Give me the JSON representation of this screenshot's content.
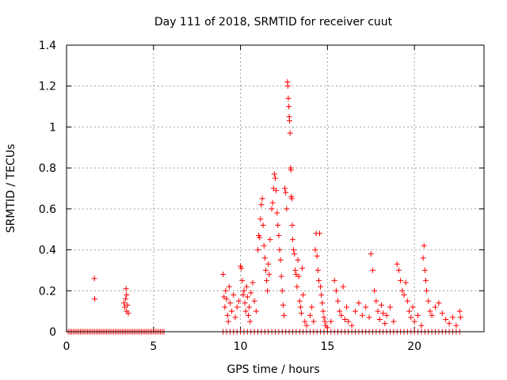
{
  "colors": {
    "marker": "#ff0000",
    "axes": "#000000",
    "grid": "#a0a0a0",
    "background": "#ffffff"
  },
  "chart_data": {
    "type": "scatter",
    "title": "Day 111 of 2018, SRMTID for receiver cuut",
    "xlabel": "GPS time / hours",
    "ylabel": "SRMTID / TECUs",
    "xlim": [
      0,
      24
    ],
    "ylim": [
      0,
      1.4
    ],
    "grid": true,
    "marker": "+",
    "x_ticks": [
      0,
      5,
      10,
      15,
      20
    ],
    "y_ticks": [
      0,
      0.2,
      0.4,
      0.6,
      0.8,
      1,
      1.2,
      1.4
    ],
    "x_tick_labels": [
      "0",
      "5",
      "10",
      "15",
      "20"
    ],
    "y_tick_labels": [
      "0",
      "0.2",
      "0.4",
      "0.6",
      "0.8",
      "1",
      "1.2",
      "1.4"
    ],
    "series": [
      {
        "name": "SRMTID",
        "points": [
          [
            0.1,
            0
          ],
          [
            0.2,
            0
          ],
          [
            0.3,
            0
          ],
          [
            0.4,
            0
          ],
          [
            0.5,
            0
          ],
          [
            0.6,
            0
          ],
          [
            0.7,
            0
          ],
          [
            0.8,
            0
          ],
          [
            0.9,
            0
          ],
          [
            1.0,
            0
          ],
          [
            1.1,
            0
          ],
          [
            1.2,
            0
          ],
          [
            1.3,
            0
          ],
          [
            1.4,
            0
          ],
          [
            1.5,
            0
          ],
          [
            1.6,
            0
          ],
          [
            1.7,
            0
          ],
          [
            1.8,
            0
          ],
          [
            1.9,
            0
          ],
          [
            2.0,
            0
          ],
          [
            2.1,
            0
          ],
          [
            2.2,
            0
          ],
          [
            2.3,
            0
          ],
          [
            2.4,
            0
          ],
          [
            2.5,
            0
          ],
          [
            2.6,
            0
          ],
          [
            2.7,
            0
          ],
          [
            2.8,
            0
          ],
          [
            2.9,
            0
          ],
          [
            3.0,
            0
          ],
          [
            3.1,
            0
          ],
          [
            3.2,
            0
          ],
          [
            3.3,
            0
          ],
          [
            3.4,
            0
          ],
          [
            3.5,
            0
          ],
          [
            3.6,
            0
          ],
          [
            3.7,
            0
          ],
          [
            3.8,
            0
          ],
          [
            3.9,
            0
          ],
          [
            4.0,
            0
          ],
          [
            4.1,
            0
          ],
          [
            4.2,
            0
          ],
          [
            4.3,
            0
          ],
          [
            4.4,
            0
          ],
          [
            4.5,
            0
          ],
          [
            4.6,
            0
          ],
          [
            4.7,
            0
          ],
          [
            4.8,
            0
          ],
          [
            4.9,
            0
          ],
          [
            5.0,
            0
          ],
          [
            5.1,
            0
          ],
          [
            5.2,
            0
          ],
          [
            5.3,
            0
          ],
          [
            5.4,
            0
          ],
          [
            5.5,
            0
          ],
          [
            5.6,
            0
          ],
          [
            1.6,
            0.26
          ],
          [
            1.62,
            0.16
          ],
          [
            3.3,
            0.14
          ],
          [
            3.35,
            0.12
          ],
          [
            3.4,
            0.16
          ],
          [
            3.42,
            0.21
          ],
          [
            3.45,
            0.1
          ],
          [
            3.5,
            0.13
          ],
          [
            3.55,
            0.09
          ],
          [
            3.45,
            0.18
          ],
          [
            9.0,
            0
          ],
          [
            9.2,
            0
          ],
          [
            9.4,
            0
          ],
          [
            9.6,
            0
          ],
          [
            9.8,
            0
          ],
          [
            10.0,
            0
          ],
          [
            10.2,
            0
          ],
          [
            10.4,
            0
          ],
          [
            10.6,
            0
          ],
          [
            10.8,
            0
          ],
          [
            11.0,
            0
          ],
          [
            11.2,
            0
          ],
          [
            11.4,
            0
          ],
          [
            11.6,
            0
          ],
          [
            11.8,
            0
          ],
          [
            12.0,
            0
          ],
          [
            12.2,
            0
          ],
          [
            12.4,
            0
          ],
          [
            12.6,
            0
          ],
          [
            12.8,
            0
          ],
          [
            13.0,
            0
          ],
          [
            13.2,
            0
          ],
          [
            13.4,
            0
          ],
          [
            13.6,
            0
          ],
          [
            13.8,
            0
          ],
          [
            14.0,
            0
          ],
          [
            14.2,
            0
          ],
          [
            14.4,
            0
          ],
          [
            14.6,
            0
          ],
          [
            14.8,
            0
          ],
          [
            15.0,
            0
          ],
          [
            15.2,
            0
          ],
          [
            15.4,
            0
          ],
          [
            15.6,
            0
          ],
          [
            15.8,
            0
          ],
          [
            16.0,
            0
          ],
          [
            16.2,
            0
          ],
          [
            16.4,
            0
          ],
          [
            16.6,
            0
          ],
          [
            16.8,
            0
          ],
          [
            17.0,
            0
          ],
          [
            17.2,
            0
          ],
          [
            17.4,
            0
          ],
          [
            17.6,
            0
          ],
          [
            17.8,
            0
          ],
          [
            18.0,
            0
          ],
          [
            18.2,
            0
          ],
          [
            18.4,
            0
          ],
          [
            18.6,
            0
          ],
          [
            18.8,
            0
          ],
          [
            19.0,
            0
          ],
          [
            19.2,
            0
          ],
          [
            19.4,
            0
          ],
          [
            19.6,
            0
          ],
          [
            19.8,
            0
          ],
          [
            20.0,
            0
          ],
          [
            20.2,
            0
          ],
          [
            20.4,
            0
          ],
          [
            20.6,
            0
          ],
          [
            20.8,
            0
          ],
          [
            21.0,
            0
          ],
          [
            21.2,
            0
          ],
          [
            21.4,
            0
          ],
          [
            21.6,
            0
          ],
          [
            21.8,
            0
          ],
          [
            22.0,
            0
          ],
          [
            22.2,
            0
          ],
          [
            22.4,
            0
          ],
          [
            22.6,
            0
          ],
          [
            9.0,
            0.28
          ],
          [
            9.05,
            0.17
          ],
          [
            9.1,
            0.12
          ],
          [
            9.15,
            0.2
          ],
          [
            9.2,
            0.16
          ],
          [
            9.25,
            0.08
          ],
          [
            9.3,
            0.05
          ],
          [
            9.35,
            0.22
          ],
          [
            9.4,
            0.14
          ],
          [
            9.5,
            0.1
          ],
          [
            9.6,
            0.18
          ],
          [
            9.7,
            0.07
          ],
          [
            9.8,
            0.12
          ],
          [
            9.9,
            0.15
          ],
          [
            10.0,
            0.32
          ],
          [
            10.05,
            0.31
          ],
          [
            10.1,
            0.25
          ],
          [
            10.15,
            0.18
          ],
          [
            10.2,
            0.2
          ],
          [
            10.25,
            0.14
          ],
          [
            10.3,
            0.1
          ],
          [
            10.35,
            0.22
          ],
          [
            10.4,
            0.17
          ],
          [
            10.45,
            0.08
          ],
          [
            10.5,
            0.12
          ],
          [
            10.55,
            0.05
          ],
          [
            10.6,
            0.19
          ],
          [
            10.7,
            0.24
          ],
          [
            10.8,
            0.15
          ],
          [
            10.9,
            0.1
          ],
          [
            11.0,
            0.4
          ],
          [
            11.05,
            0.47
          ],
          [
            11.1,
            0.46
          ],
          [
            11.15,
            0.55
          ],
          [
            11.2,
            0.62
          ],
          [
            11.25,
            0.65
          ],
          [
            11.3,
            0.52
          ],
          [
            11.35,
            0.42
          ],
          [
            11.4,
            0.36
          ],
          [
            11.45,
            0.3
          ],
          [
            11.5,
            0.25
          ],
          [
            11.55,
            0.2
          ],
          [
            11.6,
            0.33
          ],
          [
            11.65,
            0.28
          ],
          [
            11.7,
            0.45
          ],
          [
            11.8,
            0.6
          ],
          [
            11.85,
            0.63
          ],
          [
            11.9,
            0.7
          ],
          [
            11.95,
            0.77
          ],
          [
            12.0,
            0.75
          ],
          [
            12.05,
            0.69
          ],
          [
            12.1,
            0.58
          ],
          [
            12.15,
            0.52
          ],
          [
            12.2,
            0.47
          ],
          [
            12.25,
            0.4
          ],
          [
            12.3,
            0.35
          ],
          [
            12.35,
            0.27
          ],
          [
            12.4,
            0.2
          ],
          [
            12.45,
            0.13
          ],
          [
            12.5,
            0.08
          ],
          [
            12.55,
            0.7
          ],
          [
            12.6,
            0.68
          ],
          [
            12.65,
            0.6
          ],
          [
            12.7,
            1.22
          ],
          [
            12.72,
            1.2
          ],
          [
            12.75,
            1.14
          ],
          [
            12.78,
            1.1
          ],
          [
            12.8,
            1.05
          ],
          [
            12.82,
            1.03
          ],
          [
            12.85,
            0.97
          ],
          [
            12.88,
            0.8
          ],
          [
            12.9,
            0.79
          ],
          [
            12.92,
            0.66
          ],
          [
            12.95,
            0.65
          ],
          [
            12.98,
            0.52
          ],
          [
            13.0,
            0.45
          ],
          [
            13.05,
            0.4
          ],
          [
            13.1,
            0.38
          ],
          [
            13.15,
            0.3
          ],
          [
            13.2,
            0.28
          ],
          [
            13.25,
            0.22
          ],
          [
            13.3,
            0.35
          ],
          [
            13.35,
            0.27
          ],
          [
            13.4,
            0.15
          ],
          [
            13.45,
            0.12
          ],
          [
            13.5,
            0.09
          ],
          [
            13.55,
            0.31
          ],
          [
            13.6,
            0.18
          ],
          [
            13.7,
            0.05
          ],
          [
            13.8,
            0.03
          ],
          [
            14.0,
            0.08
          ],
          [
            14.1,
            0.12
          ],
          [
            14.2,
            0.05
          ],
          [
            14.3,
            0.4
          ],
          [
            14.35,
            0.48
          ],
          [
            14.4,
            0.37
          ],
          [
            14.45,
            0.3
          ],
          [
            14.5,
            0.25
          ],
          [
            14.55,
            0.48
          ],
          [
            14.6,
            0.22
          ],
          [
            14.65,
            0.18
          ],
          [
            14.7,
            0.14
          ],
          [
            14.75,
            0.1
          ],
          [
            14.8,
            0.07
          ],
          [
            14.85,
            0.05
          ],
          [
            14.9,
            0.03
          ],
          [
            15.0,
            0.02
          ],
          [
            15.2,
            0.05
          ],
          [
            15.4,
            0.25
          ],
          [
            15.5,
            0.2
          ],
          [
            15.6,
            0.15
          ],
          [
            15.7,
            0.1
          ],
          [
            15.8,
            0.08
          ],
          [
            15.9,
            0.22
          ],
          [
            16.0,
            0.06
          ],
          [
            16.1,
            0.12
          ],
          [
            16.2,
            0.05
          ],
          [
            16.4,
            0.03
          ],
          [
            16.6,
            0.1
          ],
          [
            16.8,
            0.14
          ],
          [
            17.0,
            0.08
          ],
          [
            17.2,
            0.12
          ],
          [
            17.4,
            0.07
          ],
          [
            17.5,
            0.38
          ],
          [
            17.6,
            0.3
          ],
          [
            17.7,
            0.2
          ],
          [
            17.8,
            0.15
          ],
          [
            17.9,
            0.1
          ],
          [
            18.0,
            0.06
          ],
          [
            18.1,
            0.13
          ],
          [
            18.2,
            0.09
          ],
          [
            18.3,
            0.04
          ],
          [
            18.4,
            0.08
          ],
          [
            18.6,
            0.12
          ],
          [
            18.8,
            0.05
          ],
          [
            19.0,
            0.33
          ],
          [
            19.1,
            0.3
          ],
          [
            19.2,
            0.25
          ],
          [
            19.3,
            0.2
          ],
          [
            19.4,
            0.18
          ],
          [
            19.5,
            0.24
          ],
          [
            19.6,
            0.15
          ],
          [
            19.7,
            0.1
          ],
          [
            19.8,
            0.07
          ],
          [
            19.9,
            0.12
          ],
          [
            20.0,
            0.05
          ],
          [
            20.2,
            0.08
          ],
          [
            20.4,
            0.03
          ],
          [
            20.5,
            0.36
          ],
          [
            20.55,
            0.42
          ],
          [
            20.6,
            0.3
          ],
          [
            20.65,
            0.25
          ],
          [
            20.7,
            0.2
          ],
          [
            20.8,
            0.15
          ],
          [
            20.9,
            0.1
          ],
          [
            21.0,
            0.08
          ],
          [
            21.2,
            0.12
          ],
          [
            21.4,
            0.14
          ],
          [
            21.6,
            0.09
          ],
          [
            21.8,
            0.06
          ],
          [
            22.0,
            0.04
          ],
          [
            22.2,
            0.07
          ],
          [
            22.4,
            0.03
          ],
          [
            22.6,
            0.1
          ],
          [
            22.65,
            0.07
          ]
        ]
      }
    ]
  }
}
